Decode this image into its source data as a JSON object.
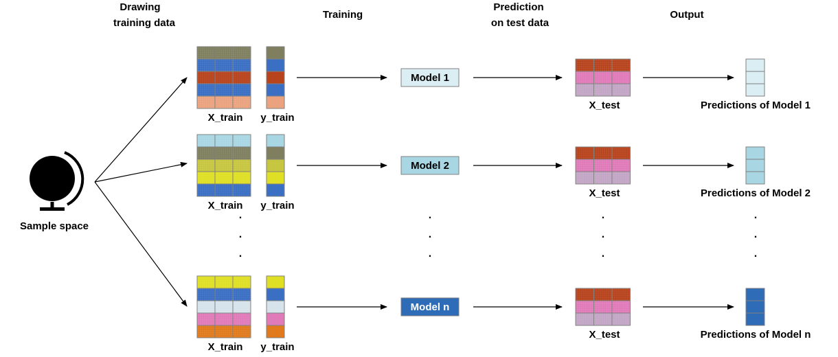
{
  "headers": {
    "drawing": [
      "Drawing",
      "training data"
    ],
    "training": "Training",
    "prediction": [
      "Prediction",
      "on test data"
    ],
    "output": "Output"
  },
  "sample_space": {
    "label": "Sample space",
    "icon": "globe-icon"
  },
  "labels": {
    "x_train": "X_train",
    "y_train": "y_train",
    "x_test": "X_test",
    "ellipsis": "."
  },
  "colors": {
    "grid_line": "#808080",
    "arrow": "#000000",
    "model_border": "#808080"
  },
  "rows": [
    {
      "model": "Model 1",
      "model_fill": "#daeef3",
      "model_text_color": "#000000",
      "train_colors": [
        "#7f7f5f",
        "#3a6fc4",
        "#b8441d",
        "#3a6fc4",
        "#eba37f"
      ],
      "test_colors": [
        "#b8441d",
        "#e07ab8",
        "#c3a6c6"
      ],
      "pred_fill": "#daeef3",
      "prediction": "Predictions of Model 1"
    },
    {
      "model": "Model 2",
      "model_fill": "#a8d6e3",
      "model_text_color": "#000000",
      "train_colors": [
        "#a8d6e3",
        "#7f7f5f",
        "#c7c640",
        "#dfdf26",
        "#3a6fc4"
      ],
      "test_colors": [
        "#b8441d",
        "#e07ab8",
        "#c3a6c6"
      ],
      "pred_fill": "#a8d6e3",
      "prediction": "Predictions of Model 2"
    },
    {
      "model": "Model n",
      "model_fill": "#2f6cb7",
      "model_text_color": "#ffffff",
      "train_colors": [
        "#dfdf26",
        "#3a6fc4",
        "#d6e3ea",
        "#e07ab8",
        "#e07a1d"
      ],
      "test_colors": [
        "#b8441d",
        "#e07ab8",
        "#c3a6c6"
      ],
      "pred_fill": "#2f6cb7",
      "prediction": "Predictions of Model n"
    }
  ]
}
